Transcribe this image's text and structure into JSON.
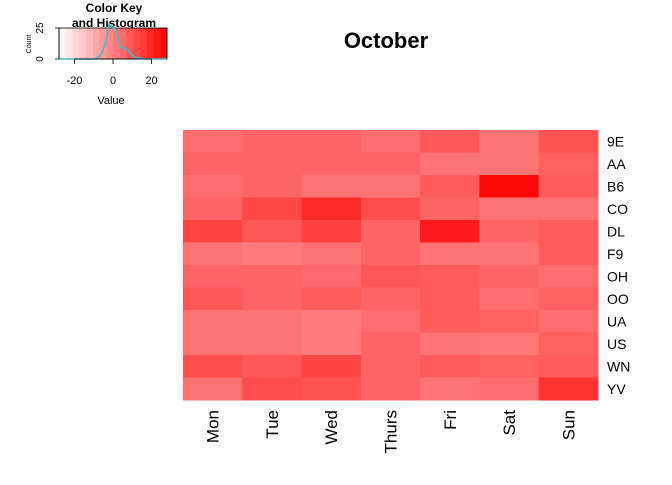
{
  "chart_data": {
    "type": "heatmap",
    "title": "October",
    "columns": [
      "Mon",
      "Tue",
      "Wed",
      "Thurs",
      "Fri",
      "Sat",
      "Sun"
    ],
    "rows": [
      "9E",
      "AA",
      "B6",
      "CO",
      "DL",
      "F9",
      "OH",
      "OO",
      "UA",
      "US",
      "WN",
      "YV"
    ],
    "values": [
      [
        4,
        6,
        6,
        4,
        9,
        3,
        10
      ],
      [
        6,
        6,
        6,
        6,
        3,
        3,
        7
      ],
      [
        4,
        6,
        3,
        3,
        8,
        26,
        8
      ],
      [
        6,
        12,
        19,
        11,
        6,
        3,
        3
      ],
      [
        13,
        9,
        14,
        6,
        22,
        6,
        8
      ],
      [
        3,
        1,
        3,
        6,
        3,
        3,
        8
      ],
      [
        6,
        6,
        5,
        9,
        8,
        6,
        4
      ],
      [
        9,
        6,
        8,
        6,
        8,
        4,
        7
      ],
      [
        3,
        3,
        1,
        4,
        8,
        7,
        4
      ],
      [
        3,
        3,
        1,
        6,
        3,
        2,
        7
      ],
      [
        11,
        9,
        13,
        6,
        8,
        7,
        8
      ],
      [
        3,
        11,
        10,
        6,
        3,
        4,
        17
      ]
    ],
    "color_scale": {
      "low": "#ffffff",
      "high": "#ff0000",
      "range": [
        -28,
        28
      ]
    },
    "color_key": {
      "title": "Color Key\nand Histogram",
      "title_lines": [
        "Color Key",
        "and Histogram"
      ],
      "xlabel": "Value",
      "ylabel": "Count",
      "xticks": [
        -20,
        0,
        20
      ],
      "yticks": [
        0,
        25
      ],
      "histogram_color": "#48b8c8",
      "histogram": [
        {
          "x": -28,
          "count": 0
        },
        {
          "x": -10,
          "count": 0
        },
        {
          "x": -8,
          "count": 1
        },
        {
          "x": -6,
          "count": 4
        },
        {
          "x": -4,
          "count": 12
        },
        {
          "x": -2,
          "count": 28
        },
        {
          "x": 2,
          "count": 23
        },
        {
          "x": 4,
          "count": 9
        },
        {
          "x": 6,
          "count": 9
        },
        {
          "x": 8,
          "count": 7
        },
        {
          "x": 10,
          "count": 3
        },
        {
          "x": 12,
          "count": 1
        },
        {
          "x": 14,
          "count": 1
        },
        {
          "x": 16,
          "count": 0
        },
        {
          "x": 28,
          "count": 0
        }
      ]
    }
  }
}
